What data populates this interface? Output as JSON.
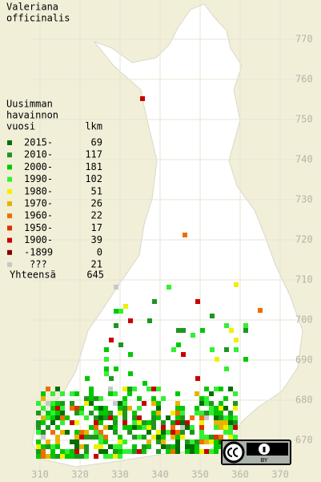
{
  "title_lines": [
    "Valeriana",
    "officinalis"
  ],
  "legend": {
    "header_lines": [
      "Uusimman",
      "havainnon",
      "vuosi"
    ],
    "count_header": "lkm",
    "rows": [
      {
        "label": "2015-",
        "count": 69,
        "color": "#006e00"
      },
      {
        "label": "2010-",
        "count": 117,
        "color": "#1e961e"
      },
      {
        "label": "2000-",
        "count": 181,
        "color": "#00c800"
      },
      {
        "label": "1990-",
        "count": 102,
        "color": "#32f032"
      },
      {
        "label": "1980-",
        "count": 51,
        "color": "#f0f000"
      },
      {
        "label": "1970-",
        "count": 26,
        "color": "#e6b400"
      },
      {
        "label": "1960-",
        "count": 22,
        "color": "#f06e00"
      },
      {
        "label": "1950-",
        "count": 17,
        "color": "#dc3200"
      },
      {
        "label": "1900-",
        "count": 39,
        "color": "#c80000"
      },
      {
        "label": "-1899",
        "count": 0,
        "color": "#820000"
      },
      {
        "label": "???",
        "count": 21,
        "color": "#c8c8c8"
      }
    ],
    "total_label": "Yhteensä",
    "total": 645
  },
  "grid": {
    "y_labels": [
      770,
      760,
      750,
      740,
      730,
      720,
      710,
      700,
      690,
      680,
      670
    ],
    "x_labels": [
      310,
      320,
      330,
      340,
      350,
      360,
      370
    ]
  },
  "license_badge_text": "BY"
}
